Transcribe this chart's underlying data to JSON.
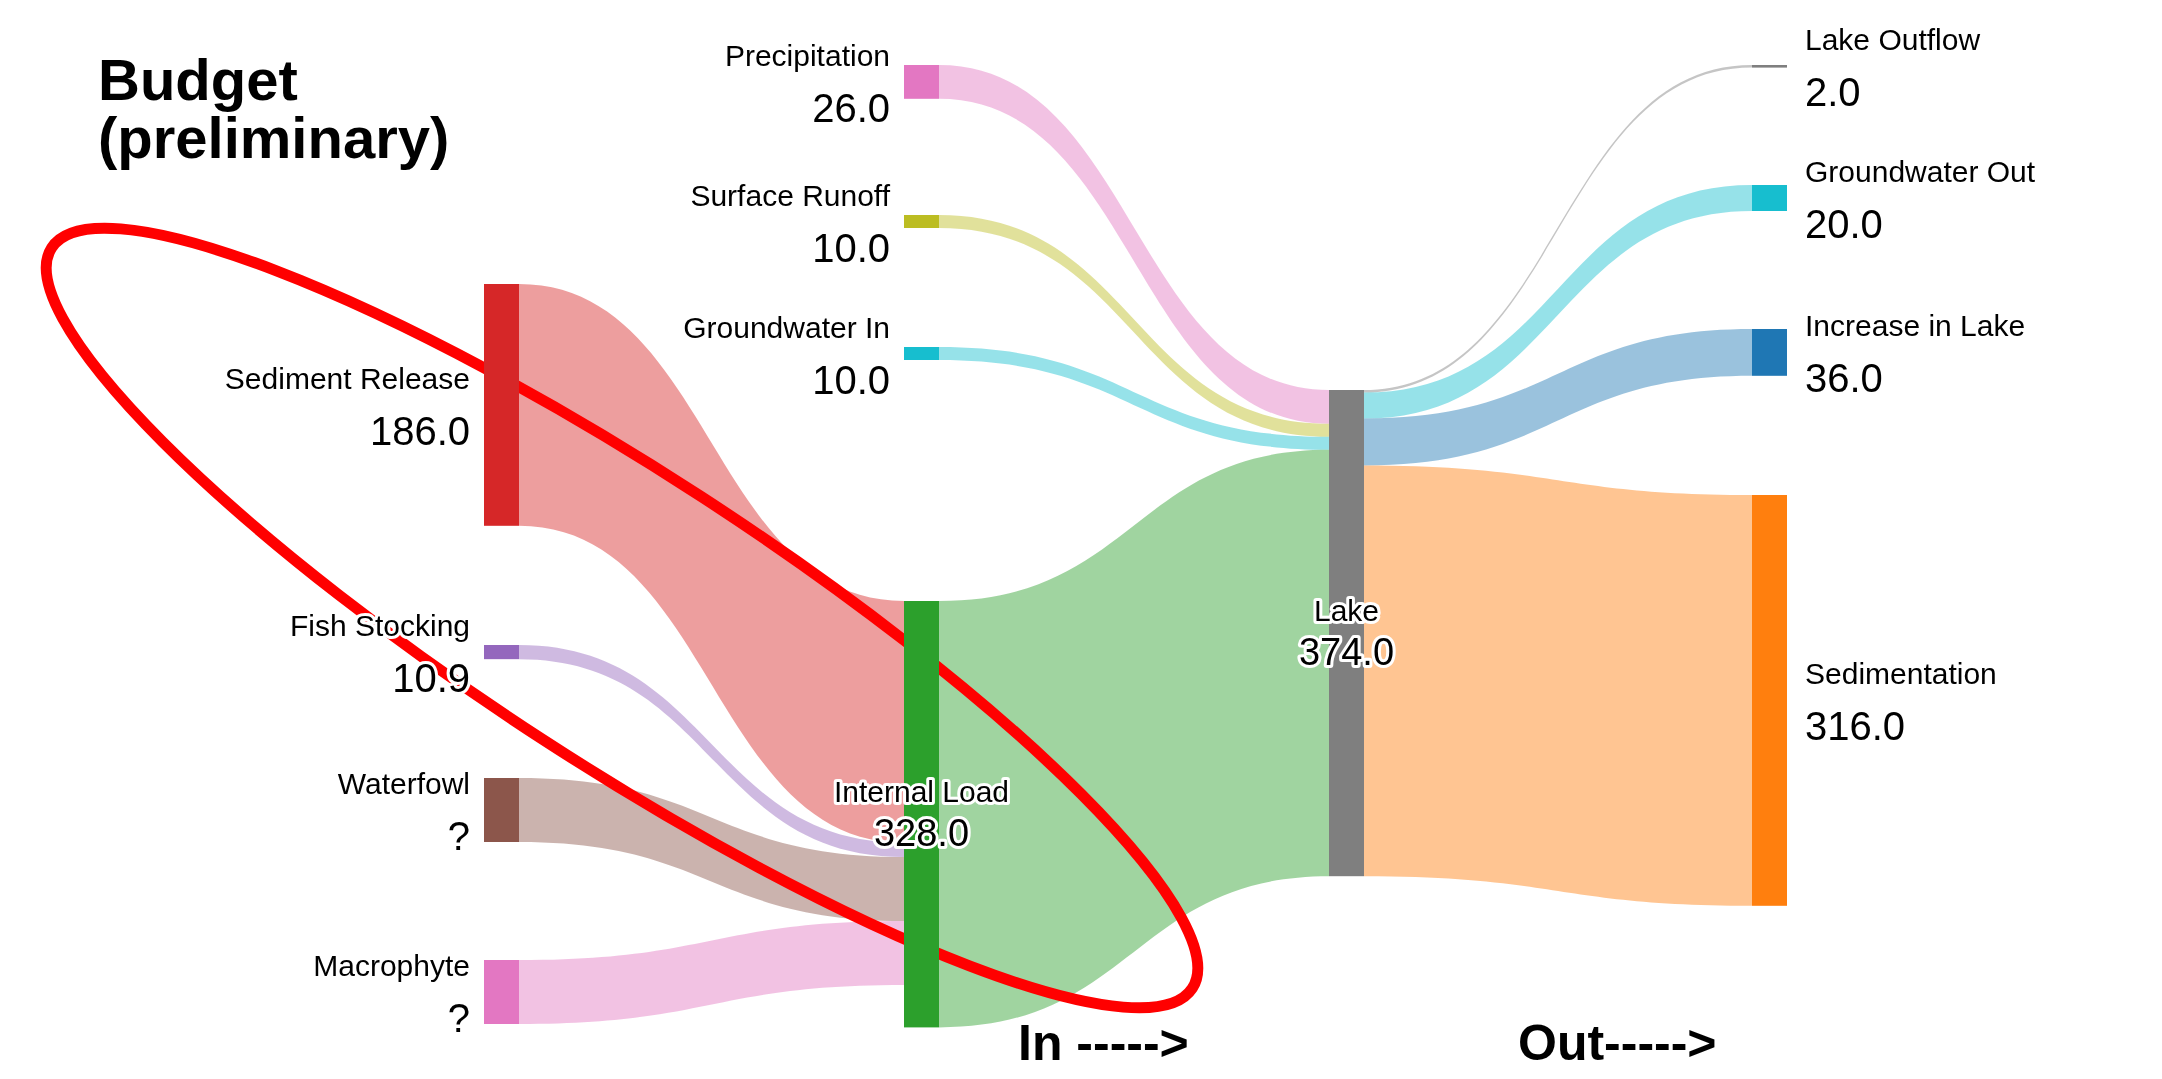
{
  "chart_data": {
    "type": "other",
    "title": "Budget (preliminary)",
    "categories": [
      "Precipitation",
      "Surface Runoff",
      "Groundwater In",
      "Sediment Release",
      "Fish Stocking",
      "Waterfowl",
      "Macrophyte",
      "Internal Load",
      "Lake",
      "Lake Outflow",
      "Groundwater Out",
      "Increase in Lake",
      "Sedimentation"
    ],
    "values": [
      26,
      10,
      10,
      186,
      10.9,
      null,
      null,
      328,
      374,
      2,
      20,
      36,
      316
    ],
    "value_labels": [
      "26.0",
      "10.0",
      "10.0",
      "186.0",
      "10.9",
      "?",
      "?",
      "328.0",
      "374.0",
      "2.0",
      "20.0",
      "36.0",
      "316.0"
    ],
    "colors": [
      "#e377c2",
      "#bcbd22",
      "#17becf",
      "#d62728",
      "#9467bd",
      "#8c564b",
      "#e377c2",
      "#2ca02c",
      "#7f7f7f",
      "#7f7f7f",
      "#17becf",
      "#1f77b4",
      "#ff7f0e"
    ],
    "annotations": [
      "In ----->",
      "Out----->"
    ]
  }
}
